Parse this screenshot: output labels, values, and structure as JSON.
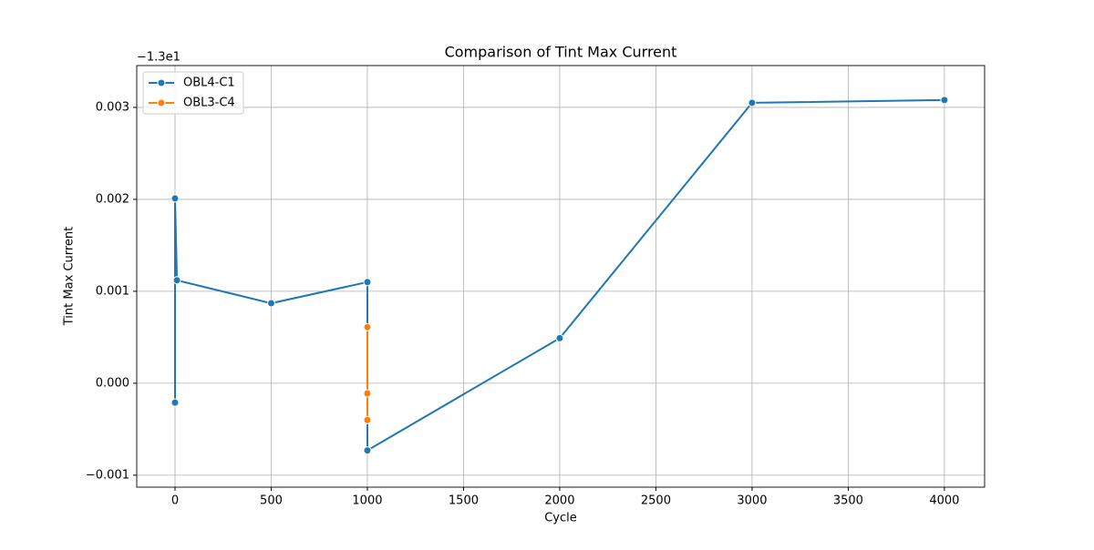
{
  "chart_data": {
    "type": "line",
    "title": "Comparison of Tint Max Current",
    "x_label": "Cycle",
    "y_label": "Tint Max Current",
    "y_offset_label": "−1.3e1",
    "series": [
      {
        "name": "OBL4-C1",
        "color": "#1f77b4",
        "x": [
          0,
          0,
          10,
          500,
          1000,
          1000,
          2000,
          3000,
          4000
        ],
        "values": [
          -0.00021,
          0.00201,
          0.00112,
          0.00087,
          0.0011,
          -0.00073,
          0.00049,
          0.00305,
          0.00308
        ]
      },
      {
        "name": "OBL3-C4",
        "color": "#ff7f0e",
        "x": [
          1000,
          1000,
          1000
        ],
        "values": [
          0.00061,
          -0.00011,
          -0.0004
        ]
      }
    ],
    "xlim": [
      -199,
      4209
    ],
    "ylim": [
      -0.00113,
      0.003455
    ],
    "xticks": [
      0,
      500,
      1000,
      1500,
      2000,
      2500,
      3000,
      3500,
      4000
    ],
    "yticks": [
      {
        "value": -0.001,
        "label": "−0.001"
      },
      {
        "value": 0,
        "label": "0.000"
      },
      0.001,
      0.002,
      0.003
    ],
    "grid": true,
    "legend": "upper-left"
  }
}
